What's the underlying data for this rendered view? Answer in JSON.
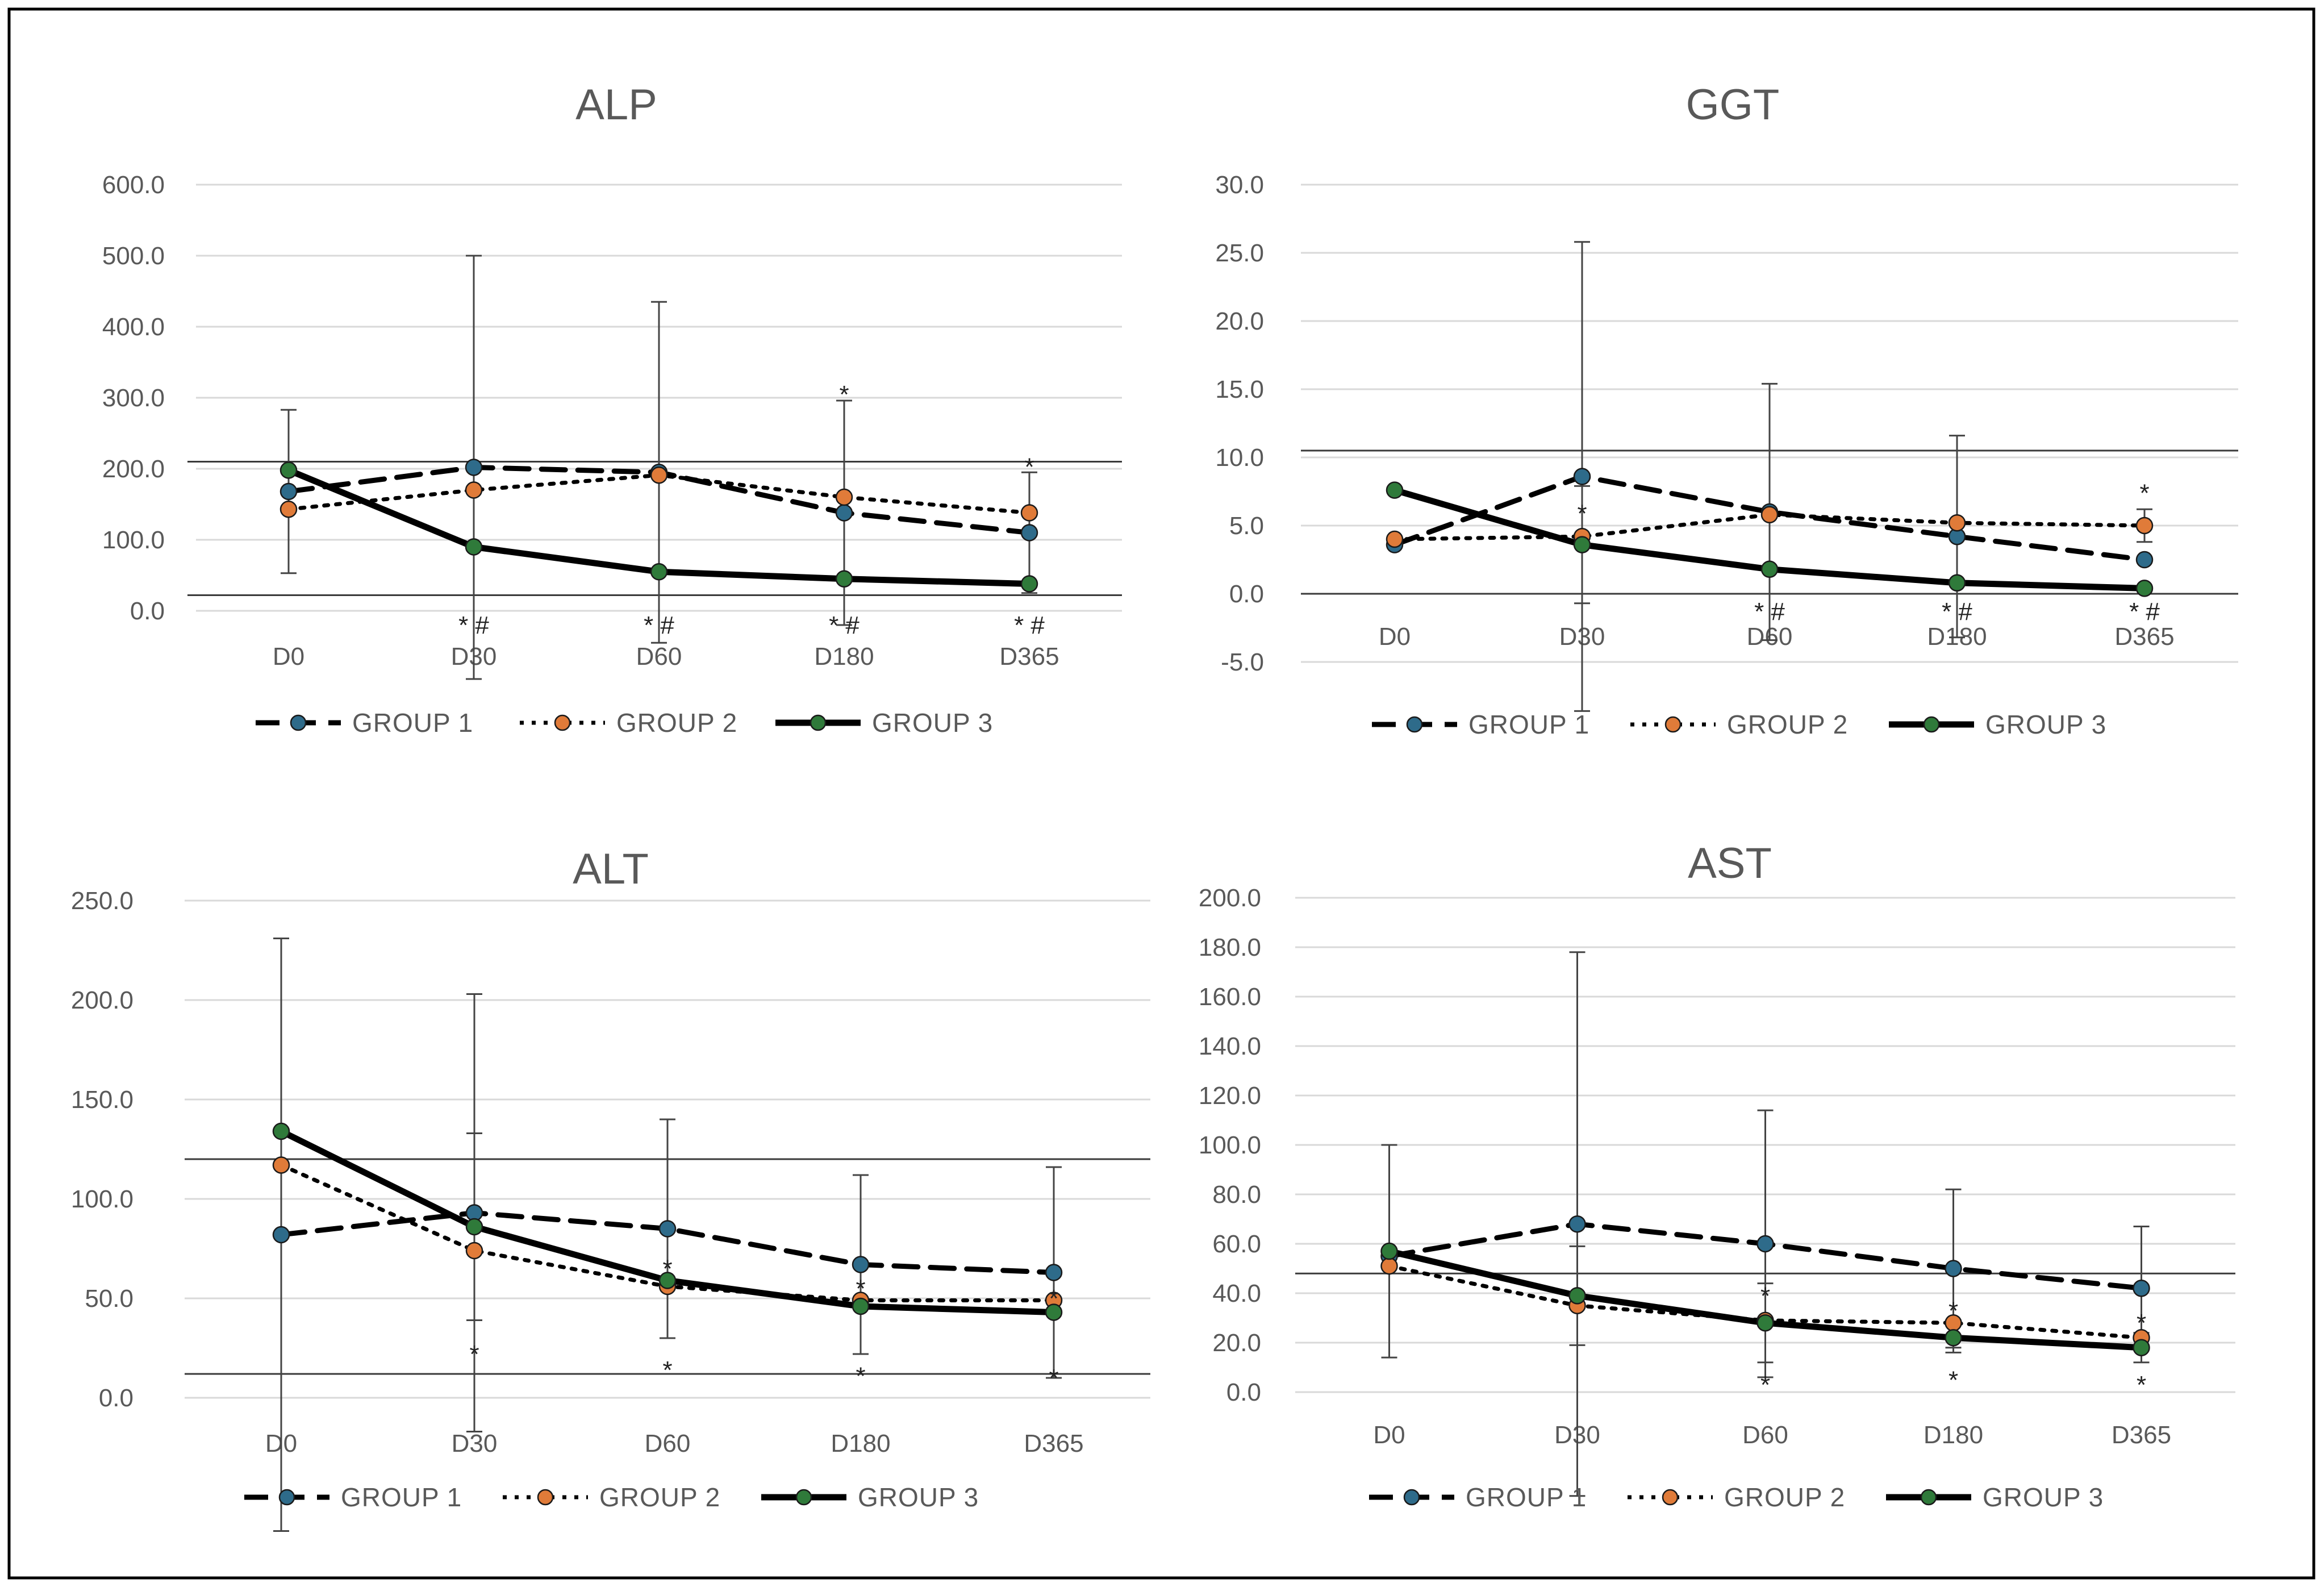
{
  "colors": {
    "group1_marker": "#2e6b8a",
    "group2_marker": "#e07b39",
    "group3_marker": "#2f7a3a",
    "line": "#000000",
    "grid": "#d9d9d9",
    "text": "#595959"
  },
  "legend": [
    "GROUP 1",
    "GROUP 2",
    "GROUP 3"
  ],
  "chart_data": [
    {
      "type": "line",
      "title": "ALP",
      "categories": [
        "D0",
        "D30",
        "D60",
        "D180",
        "D365"
      ],
      "ylim": [
        0,
        600
      ],
      "yticks": [
        "600.0",
        "500.0",
        "400.0",
        "300.0",
        "200.0",
        "100.0",
        "0.0"
      ],
      "reference_lines": [
        210,
        22
      ],
      "legend_position": "bottom",
      "series": [
        {
          "name": "GROUP 1",
          "style": "dashed",
          "values": [
            168,
            202,
            195,
            138,
            110
          ],
          "err": [
            115,
            298,
            240,
            158,
            85
          ]
        },
        {
          "name": "GROUP 2",
          "style": "dotted",
          "values": [
            143,
            170,
            191,
            160,
            138
          ],
          "err": [
            0,
            0,
            0,
            0,
            0
          ]
        },
        {
          "name": "GROUP 3",
          "style": "solid",
          "values": [
            198,
            90,
            55,
            45,
            38
          ],
          "err": [
            0,
            0,
            0,
            0,
            0
          ]
        }
      ],
      "annotations": [
        {
          "cat": 1,
          "value": -20,
          "text": "* #"
        },
        {
          "cat": 2,
          "value": -20,
          "text": "* #"
        },
        {
          "cat": 3,
          "value": -20,
          "text": "* #"
        },
        {
          "cat": 4,
          "value": -20,
          "text": "* #"
        },
        {
          "cat": 3,
          "value": 305,
          "text": "*"
        },
        {
          "cat": 4,
          "value": 203,
          "text": "*"
        }
      ]
    },
    {
      "type": "line",
      "title": "GGT",
      "categories": [
        "D0",
        "D30",
        "D60",
        "D180",
        "D365"
      ],
      "ylim": [
        -5,
        30
      ],
      "yticks": [
        "30.0",
        "25.0",
        "20.0",
        "15.0",
        "10.0",
        "5.0",
        "0.0",
        "-5.0"
      ],
      "reference_lines": [
        10.5,
        0
      ],
      "legend_position": "bottom",
      "series": [
        {
          "name": "GROUP 1",
          "style": "dashed",
          "values": [
            3.6,
            8.6,
            6.0,
            4.2,
            2.5
          ],
          "err": [
            0,
            17.2,
            9.4,
            7.4,
            0
          ]
        },
        {
          "name": "GROUP 2",
          "style": "dotted",
          "values": [
            4.0,
            4.2,
            5.8,
            5.2,
            5.0
          ],
          "err": [
            0,
            0,
            0,
            0,
            1.2
          ]
        },
        {
          "name": "GROUP 3",
          "style": "solid",
          "values": [
            7.6,
            3.6,
            1.8,
            0.8,
            0.4
          ],
          "err": [
            0,
            4.3,
            0,
            0,
            0
          ]
        }
      ],
      "annotations": [
        {
          "cat": 1,
          "value": 5.9,
          "text": "*"
        },
        {
          "cat": 2,
          "value": -1.3,
          "text": "* #"
        },
        {
          "cat": 3,
          "value": -1.3,
          "text": "* #"
        },
        {
          "cat": 4,
          "value": -1.3,
          "text": "* #"
        },
        {
          "cat": 4,
          "value": 7.4,
          "text": "*"
        }
      ]
    },
    {
      "type": "line",
      "title": "ALT",
      "categories": [
        "D0",
        "D30",
        "D60",
        "D180",
        "D365"
      ],
      "ylim": [
        0,
        250
      ],
      "yticks": [
        "250.0",
        "200.0",
        "150.0",
        "100.0",
        "50.0",
        "0.0"
      ],
      "reference_lines": [
        120,
        12
      ],
      "legend_position": "bottom",
      "series": [
        {
          "name": "GROUP 1",
          "style": "dashed",
          "values": [
            82,
            93,
            85,
            67,
            63
          ],
          "err": [
            149,
            110,
            55,
            45,
            53
          ]
        },
        {
          "name": "GROUP 2",
          "style": "dotted",
          "values": [
            117,
            74,
            56,
            49,
            49
          ],
          "err": [
            0,
            0,
            0,
            0,
            0
          ]
        },
        {
          "name": "GROUP 3",
          "style": "solid",
          "values": [
            134,
            86,
            59,
            46,
            43
          ],
          "err": [
            0,
            47,
            0,
            0,
            0
          ]
        }
      ],
      "annotations": [
        {
          "cat": 1,
          "value": 22,
          "text": "*"
        },
        {
          "cat": 2,
          "value": 14,
          "text": "*"
        },
        {
          "cat": 2,
          "value": 65,
          "text": "*"
        },
        {
          "cat": 3,
          "value": 11,
          "text": "*"
        },
        {
          "cat": 3,
          "value": 55,
          "text": "*"
        },
        {
          "cat": 4,
          "value": 10,
          "text": "*"
        },
        {
          "cat": 4,
          "value": 50,
          "text": "*"
        }
      ]
    },
    {
      "type": "line",
      "title": "AST",
      "categories": [
        "D0",
        "D30",
        "D60",
        "D180",
        "D365"
      ],
      "ylim": [
        0,
        200
      ],
      "yticks": [
        "200.0",
        "180.0",
        "160.0",
        "140.0",
        "120.0",
        "100.0",
        "80.0",
        "60.0",
        "40.0",
        "20.0",
        "0.0"
      ],
      "reference_lines": [
        48
      ],
      "legend_position": "bottom",
      "series": [
        {
          "name": "GROUP 1",
          "style": "dashed",
          "values": [
            55,
            68,
            60,
            50,
            42
          ],
          "err": [
            0,
            110,
            54,
            32,
            25
          ]
        },
        {
          "name": "GROUP 2",
          "style": "dotted",
          "values": [
            51,
            35,
            29,
            28,
            22
          ],
          "err": [
            0,
            0,
            0,
            0,
            0
          ]
        },
        {
          "name": "GROUP 3",
          "style": "solid",
          "values": [
            57,
            39,
            28,
            22,
            18
          ],
          "err": [
            43,
            20,
            16,
            6,
            6
          ]
        }
      ],
      "annotations": [
        {
          "cat": 2,
          "value": 39,
          "text": "*"
        },
        {
          "cat": 2,
          "value": 3,
          "text": "*"
        },
        {
          "cat": 3,
          "value": 33,
          "text": "*"
        },
        {
          "cat": 3,
          "value": 5,
          "text": "*"
        },
        {
          "cat": 4,
          "value": 28,
          "text": "*"
        },
        {
          "cat": 4,
          "value": 3,
          "text": "*"
        }
      ]
    }
  ]
}
